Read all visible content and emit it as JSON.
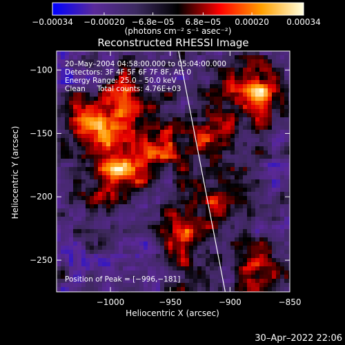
{
  "chart_data": {
    "type": "heatmap",
    "title": "Reconstructed RHESSI Image",
    "xlabel": "Heliocentric X (arcsec)",
    "ylabel": "Heliocentric Y (arcsec)",
    "xlim": [
      -1045,
      -850
    ],
    "ylim": [
      -275,
      -85
    ],
    "x_ticks": [
      {
        "value": -1000,
        "label": "−1000"
      },
      {
        "value": -950,
        "label": "−950"
      },
      {
        "value": -900,
        "label": "−900"
      },
      {
        "value": -850,
        "label": "−850"
      }
    ],
    "y_ticks": [
      {
        "value": -100,
        "label": "−100"
      },
      {
        "value": -150,
        "label": "−150"
      },
      {
        "value": -200,
        "label": "−200"
      },
      {
        "value": -250,
        "label": "−250"
      }
    ],
    "colorbar": {
      "range": [
        -0.00034,
        0.00034
      ],
      "ticks": [
        {
          "value": -0.00034,
          "label": "−0.00034"
        },
        {
          "value": -0.0002,
          "label": "−0.00020"
        },
        {
          "value": -6.8e-05,
          "label": "−6.8e−05"
        },
        {
          "value": 6.8e-05,
          "label": "6.8e−05"
        },
        {
          "value": 0.0002,
          "label": "0.00020"
        },
        {
          "value": 0.00034,
          "label": "0.00034"
        }
      ],
      "unit_label": "(photons cm⁻² s⁻¹ asec⁻²)",
      "colors": [
        "#0000ff",
        "#5a2a9a",
        "#3c2a60",
        "#000000",
        "#ff0000",
        "#ffa000",
        "#ffffe0"
      ]
    },
    "limb_line": [
      [
        -943,
        -85
      ],
      [
        -904,
        -275
      ]
    ],
    "peak": {
      "x": -996,
      "y": -181
    },
    "bright_regions": [
      {
        "x": -995,
        "y": -180,
        "intensity": 1.0
      },
      {
        "x": -1010,
        "y": -145,
        "intensity": 0.9
      },
      {
        "x": -878,
        "y": -118,
        "intensity": 0.95
      },
      {
        "x": -878,
        "y": -258,
        "intensity": 0.7
      },
      {
        "x": -960,
        "y": -160,
        "intensity": 0.7
      },
      {
        "x": -915,
        "y": -150,
        "intensity": 0.65
      },
      {
        "x": -935,
        "y": -215,
        "intensity": 0.55
      },
      {
        "x": -905,
        "y": -200,
        "intensity": 0.45
      },
      {
        "x": -985,
        "y": -120,
        "intensity": 0.5
      },
      {
        "x": -940,
        "y": -250,
        "intensity": 0.4
      }
    ],
    "annotations": [
      "20–May–2004 04:58:00.000 to 05:04:00.000",
      "Detectors: 3F 4F 5F 6F 7F 8F, Att 0",
      "Energy Range: 25.0 – 50.0 keV",
      "Clean     Total counts: 4.76E+03"
    ],
    "peak_label": "Position of Peak = [−996,−181]"
  },
  "footer": {
    "timestamp": "30–Apr–2022 22:06"
  }
}
